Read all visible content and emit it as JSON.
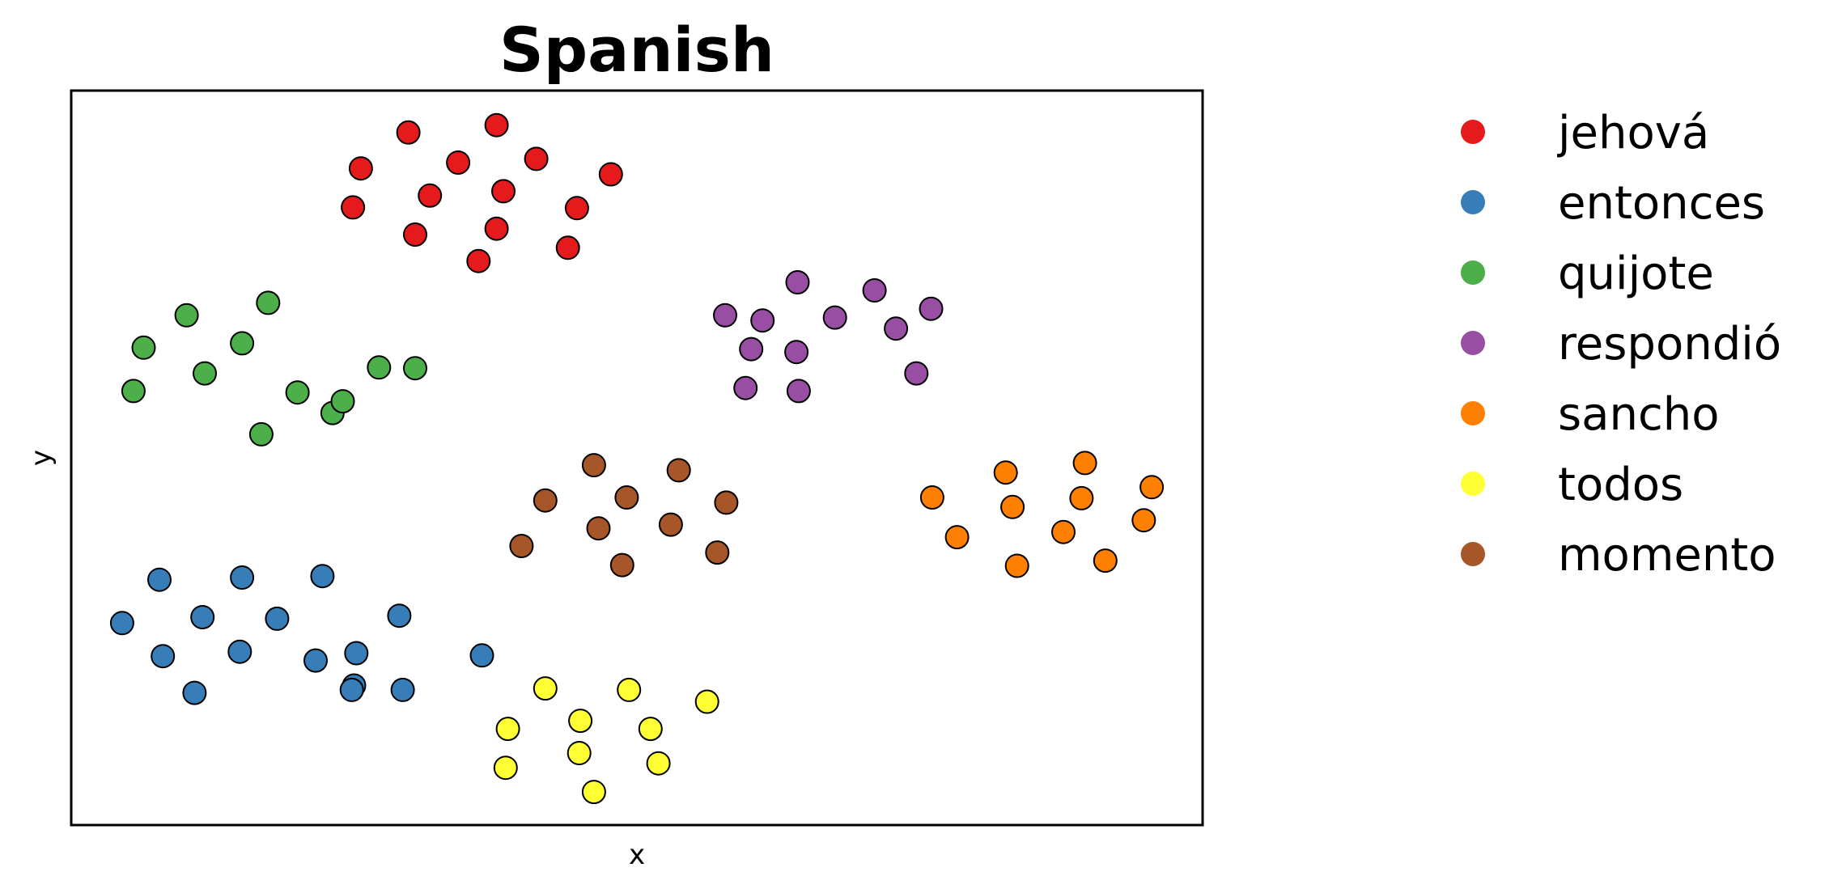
{
  "chart_data": {
    "type": "scatter",
    "title": "Spanish",
    "xlabel": "x",
    "ylabel": "y",
    "xlim": [
      0,
      100
    ],
    "ylim": [
      0,
      100
    ],
    "grid": false,
    "ticks_shown": false,
    "legend_position": "outside-right",
    "series": [
      {
        "name": "jehová",
        "color": "#e41a1c",
        "x": [
          25.6,
          29.8,
          34.2,
          37.6,
          41.1,
          24.9,
          31.7,
          38.2,
          44.7,
          47.7,
          30.4,
          36.0,
          37.6,
          43.9
        ],
        "y": [
          89.4,
          94.3,
          90.2,
          95.3,
          90.7,
          84.1,
          85.7,
          86.3,
          84.0,
          88.6,
          80.4,
          76.8,
          81.2,
          78.6
        ]
      },
      {
        "name": "entonces",
        "color": "#377eb8",
        "x": [
          7.8,
          15.1,
          22.2,
          29.0,
          4.5,
          11.6,
          18.2,
          25.2,
          36.3,
          8.1,
          14.9,
          21.6,
          25.0,
          29.3,
          24.8,
          10.9
        ],
        "y": [
          33.4,
          33.7,
          33.9,
          28.5,
          27.5,
          28.3,
          28.1,
          23.4,
          23.1,
          23.0,
          23.6,
          22.4,
          19.0,
          18.4,
          18.4,
          18.0
        ]
      },
      {
        "name": "quijote",
        "color": "#4daf4a",
        "x": [
          10.2,
          17.4,
          6.4,
          15.1,
          5.5,
          11.8,
          20.0,
          23.1,
          27.2,
          16.8,
          24.0,
          30.4
        ],
        "y": [
          69.4,
          71.1,
          65.0,
          65.6,
          59.1,
          61.5,
          58.9,
          56.1,
          62.3,
          53.2,
          57.7,
          62.2
        ]
      },
      {
        "name": "respondió",
        "color": "#984ea3",
        "x": [
          64.2,
          71.0,
          57.8,
          76.0,
          61.1,
          64.1,
          67.5,
          72.9,
          74.7,
          60.1,
          59.6,
          64.3
        ],
        "y": [
          73.9,
          72.8,
          69.4,
          70.3,
          68.7,
          64.4,
          69.1,
          67.6,
          61.5,
          64.8,
          59.5,
          59.1
        ]
      },
      {
        "name": "sancho",
        "color": "#ff7f00",
        "x": [
          89.6,
          82.6,
          95.5,
          76.1,
          83.2,
          89.3,
          94.8,
          78.3,
          87.7,
          91.4,
          83.6
        ],
        "y": [
          49.3,
          48.0,
          46.0,
          44.6,
          43.3,
          44.5,
          41.5,
          39.2,
          39.9,
          36.0,
          35.3
        ]
      },
      {
        "name": "todos",
        "color": "#ffff33",
        "x": [
          41.9,
          49.3,
          56.2,
          38.6,
          45.0,
          51.2,
          44.9,
          38.4,
          51.9,
          46.2
        ],
        "y": [
          18.6,
          18.4,
          16.8,
          13.1,
          14.2,
          13.1,
          9.8,
          7.8,
          8.4,
          4.5
        ]
      },
      {
        "name": "momento",
        "color": "#a65628",
        "x": [
          46.2,
          53.7,
          41.9,
          49.1,
          57.9,
          39.8,
          46.6,
          53.0,
          57.1,
          48.7
        ],
        "y": [
          49.0,
          48.3,
          44.2,
          44.6,
          43.9,
          38.0,
          40.4,
          40.9,
          37.1,
          35.4
        ]
      }
    ]
  }
}
